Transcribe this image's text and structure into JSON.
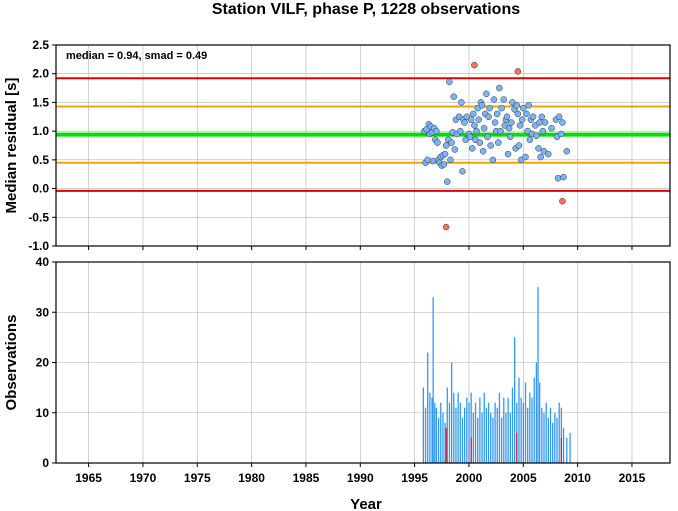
{
  "chart_data": {
    "title": "Station VILF, phase P, 1228 observations",
    "xlabel": "Year",
    "xlim": [
      1962.0,
      2018.5
    ],
    "x_ticks": [
      1965,
      1970,
      1975,
      1980,
      1985,
      1990,
      1995,
      2000,
      2005,
      2010,
      2015
    ],
    "grid": true,
    "panels": [
      {
        "type": "scatter",
        "ylabel": "Median residual [s]",
        "ylim": [
          -1.0,
          2.5
        ],
        "y_ticks": [
          -1.0,
          -0.5,
          0.0,
          0.5,
          1.0,
          1.5,
          2.0,
          2.5
        ],
        "annotation": "median = 0.94, smad = 0.49",
        "reference_lines": [
          {
            "label": "median",
            "value": 0.94,
            "color": "#00e000"
          },
          {
            "label": "median + smad",
            "value": 1.43,
            "color": "#f5a300"
          },
          {
            "label": "median - smad",
            "value": 0.45,
            "color": "#f5a300"
          },
          {
            "label": "median + 2 smad",
            "value": 1.92,
            "color": "#e00000"
          },
          {
            "label": "median - 2 smad",
            "value": -0.04,
            "color": "#e00000"
          }
        ],
        "series": [
          {
            "color": "#7ab4f5",
            "points": [
              [
                1995.9,
                1.0
              ],
              [
                1996.0,
                0.45
              ],
              [
                1996.1,
                1.03
              ],
              [
                1996.2,
                0.5
              ],
              [
                1996.3,
                1.12
              ],
              [
                1996.4,
                0.95
              ],
              [
                1996.5,
                1.08
              ],
              [
                1996.6,
                0.98
              ],
              [
                1996.7,
                0.48
              ],
              [
                1996.8,
                1.05
              ],
              [
                1996.9,
                0.85
              ],
              [
                1997.0,
                1.0
              ],
              [
                1997.1,
                0.8
              ],
              [
                1997.2,
                0.5
              ],
              [
                1997.3,
                0.45
              ],
              [
                1997.4,
                0.55
              ],
              [
                1997.5,
                0.4
              ],
              [
                1997.6,
                0.58
              ],
              [
                1997.7,
                0.42
              ],
              [
                1997.8,
                0.6
              ],
              [
                1997.9,
                0.75
              ],
              [
                1998.0,
                0.12
              ],
              [
                1998.1,
                0.85
              ],
              [
                1998.2,
                1.86
              ],
              [
                1998.3,
                0.5
              ],
              [
                1998.4,
                0.8
              ],
              [
                1998.5,
                0.98
              ],
              [
                1998.6,
                1.6
              ],
              [
                1998.7,
                0.68
              ],
              [
                1998.8,
                1.2
              ],
              [
                1998.9,
                0.95
              ],
              [
                1999.1,
                1.25
              ],
              [
                1999.2,
                1.0
              ],
              [
                1999.3,
                1.5
              ],
              [
                1999.4,
                0.3
              ],
              [
                1999.5,
                1.2
              ],
              [
                1999.6,
                1.15
              ],
              [
                1999.7,
                0.85
              ],
              [
                1999.8,
                1.25
              ],
              [
                2000.0,
                0.95
              ],
              [
                2000.1,
                0.9
              ],
              [
                2000.2,
                1.2
              ],
              [
                2000.3,
                0.7
              ],
              [
                2000.4,
                1.3
              ],
              [
                2000.5,
                1.1
              ],
              [
                2000.6,
                0.85
              ],
              [
                2000.7,
                1.0
              ],
              [
                2000.8,
                1.4
              ],
              [
                2000.9,
                1.2
              ],
              [
                2001.0,
                0.8
              ],
              [
                2001.1,
                1.5
              ],
              [
                2001.2,
                1.45
              ],
              [
                2001.3,
                0.65
              ],
              [
                2001.4,
                1.05
              ],
              [
                2001.5,
                1.3
              ],
              [
                2001.6,
                1.65
              ],
              [
                2001.7,
                0.9
              ],
              [
                2001.8,
                1.25
              ],
              [
                2001.9,
                1.4
              ],
              [
                2002.0,
                0.75
              ],
              [
                2002.2,
                0.5
              ],
              [
                2002.3,
                1.55
              ],
              [
                2002.4,
                1.15
              ],
              [
                2002.5,
                1.0
              ],
              [
                2002.6,
                1.3
              ],
              [
                2002.7,
                0.8
              ],
              [
                2002.8,
                1.75
              ],
              [
                2002.9,
                1.0
              ],
              [
                2003.0,
                1.4
              ],
              [
                2003.2,
                1.55
              ],
              [
                2003.3,
                1.1
              ],
              [
                2003.4,
                1.2
              ],
              [
                2003.5,
                1.25
              ],
              [
                2003.6,
                0.6
              ],
              [
                2003.7,
                1.05
              ],
              [
                2003.8,
                0.9
              ],
              [
                2003.9,
                1.15
              ],
              [
                2004.0,
                1.5
              ],
              [
                2004.2,
                1.38
              ],
              [
                2004.3,
                0.7
              ],
              [
                2004.4,
                1.45
              ],
              [
                2004.5,
                1.3
              ],
              [
                2004.6,
                0.75
              ],
              [
                2004.7,
                1.1
              ],
              [
                2004.8,
                0.5
              ],
              [
                2004.9,
                1.2
              ],
              [
                2005.0,
                1.4
              ],
              [
                2005.2,
                0.55
              ],
              [
                2005.3,
                1.3
              ],
              [
                2005.4,
                1.0
              ],
              [
                2005.5,
                1.45
              ],
              [
                2005.6,
                0.85
              ],
              [
                2005.7,
                1.2
              ],
              [
                2005.8,
                0.95
              ],
              [
                2005.9,
                1.25
              ],
              [
                2006.1,
                1.1
              ],
              [
                2006.2,
                0.92
              ],
              [
                2006.4,
                0.7
              ],
              [
                2006.5,
                1.15
              ],
              [
                2006.6,
                0.55
              ],
              [
                2006.7,
                1.25
              ],
              [
                2006.8,
                1.0
              ],
              [
                2006.9,
                0.65
              ],
              [
                2007.0,
                1.15
              ],
              [
                2007.3,
                0.6
              ],
              [
                2007.6,
                1.05
              ],
              [
                2008.0,
                1.2
              ],
              [
                2008.1,
                0.9
              ],
              [
                2008.2,
                0.18
              ],
              [
                2008.3,
                1.25
              ],
              [
                2008.5,
                0.95
              ],
              [
                2008.6,
                1.15
              ],
              [
                2008.7,
                0.2
              ],
              [
                2009.0,
                0.65
              ]
            ]
          },
          {
            "color": "#f87060",
            "points": [
              [
                1997.9,
                -0.67
              ],
              [
                2000.5,
                2.15
              ],
              [
                2004.5,
                2.04
              ],
              [
                2008.6,
                -0.22
              ]
            ]
          }
        ]
      },
      {
        "type": "bar",
        "ylabel": "Observations",
        "ylim": [
          0,
          40
        ],
        "y_ticks": [
          0,
          10,
          20,
          30,
          40
        ],
        "series": [
          {
            "color": "#3399ee",
            "values": [
              [
                1995.8,
                15
              ],
              [
                1996.0,
                11
              ],
              [
                1996.2,
                22
              ],
              [
                1996.4,
                14
              ],
              [
                1996.6,
                13
              ],
              [
                1996.7,
                33
              ],
              [
                1996.85,
                12
              ],
              [
                1997.0,
                11
              ],
              [
                1997.2,
                9
              ],
              [
                1997.4,
                12
              ],
              [
                1997.6,
                10
              ],
              [
                1997.8,
                8
              ],
              [
                1998.0,
                15
              ],
              [
                1998.2,
                12
              ],
              [
                1998.4,
                20
              ],
              [
                1998.6,
                14
              ],
              [
                1998.8,
                11
              ],
              [
                1999.0,
                14
              ],
              [
                1999.2,
                12
              ],
              [
                1999.4,
                9
              ],
              [
                1999.6,
                11
              ],
              [
                1999.8,
                13
              ],
              [
                2000.0,
                12
              ],
              [
                2000.2,
                14
              ],
              [
                2000.4,
                10
              ],
              [
                2000.6,
                12
              ],
              [
                2000.8,
                9
              ],
              [
                2001.0,
                13
              ],
              [
                2001.2,
                10
              ],
              [
                2001.4,
                14
              ],
              [
                2001.6,
                11
              ],
              [
                2001.8,
                12
              ],
              [
                2002.0,
                10
              ],
              [
                2002.2,
                9
              ],
              [
                2002.4,
                12
              ],
              [
                2002.6,
                11
              ],
              [
                2002.8,
                14
              ],
              [
                2003.0,
                9
              ],
              [
                2003.2,
                13
              ],
              [
                2003.4,
                10
              ],
              [
                2003.6,
                13
              ],
              [
                2003.8,
                10
              ],
              [
                2004.0,
                15
              ],
              [
                2004.2,
                25
              ],
              [
                2004.4,
                12
              ],
              [
                2004.6,
                17
              ],
              [
                2004.8,
                13
              ],
              [
                2005.0,
                12
              ],
              [
                2005.2,
                16
              ],
              [
                2005.4,
                11
              ],
              [
                2005.6,
                14
              ],
              [
                2005.8,
                13
              ],
              [
                2006.0,
                17
              ],
              [
                2006.2,
                20
              ],
              [
                2006.35,
                35
              ],
              [
                2006.5,
                16
              ],
              [
                2006.7,
                11
              ],
              [
                2006.9,
                10
              ],
              [
                2007.1,
                12
              ],
              [
                2007.3,
                9
              ],
              [
                2007.5,
                11
              ],
              [
                2007.7,
                8
              ],
              [
                2007.9,
                10
              ],
              [
                2008.1,
                9
              ],
              [
                2008.3,
                12
              ],
              [
                2008.5,
                11
              ],
              [
                2008.7,
                7
              ],
              [
                2009.0,
                5
              ],
              [
                2009.3,
                6
              ]
            ]
          },
          {
            "color": "#cc2233",
            "values": [
              [
                1997.9,
                7
              ],
              [
                2000.2,
                5
              ],
              [
                2004.4,
                6
              ],
              [
                2008.5,
                5
              ]
            ]
          }
        ]
      }
    ]
  }
}
